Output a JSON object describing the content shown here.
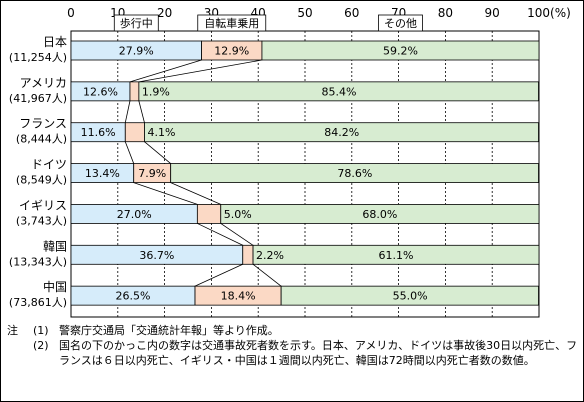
{
  "chart_data": {
    "type": "bar",
    "stacked": "100%",
    "orientation": "horizontal",
    "x_ticks": [
      "0",
      "10",
      "20",
      "30",
      "40",
      "50",
      "60",
      "70",
      "80",
      "90",
      "100(%)"
    ],
    "xlim": [
      0,
      100
    ],
    "grid": true,
    "legend_position": "top",
    "categories": [
      {
        "name": "日本",
        "count": "(11,254人)"
      },
      {
        "name": "アメリカ",
        "count": "(41,967人)"
      },
      {
        "name": "フランス",
        "count": "(8,444人)"
      },
      {
        "name": "ドイツ",
        "count": "(8,549人)"
      },
      {
        "name": "イギリス",
        "count": "(3,743人)"
      },
      {
        "name": "韓国",
        "count": "(13,343人)"
      },
      {
        "name": "中国",
        "count": "(73,861人)"
      }
    ],
    "series": [
      {
        "name": "歩行中",
        "color": "#d6ecfa",
        "values": [
          27.9,
          12.6,
          11.6,
          13.4,
          27.0,
          36.7,
          26.5
        ],
        "labels": [
          "27.9%",
          "12.6%",
          "11.6%",
          "13.4%",
          "27.0%",
          "36.7%",
          "26.5%"
        ]
      },
      {
        "name": "自転車乗用",
        "color": "#fbd9c5",
        "values": [
          12.9,
          1.9,
          4.1,
          7.9,
          5.0,
          2.2,
          18.4
        ],
        "labels": [
          "12.9%",
          "1.9%",
          "4.1%",
          "7.9%",
          "5.0%",
          "2.2%",
          "18.4%"
        ]
      },
      {
        "name": "その他",
        "color": "#d7ecd1",
        "values": [
          59.2,
          85.4,
          84.2,
          78.6,
          68.0,
          61.1,
          55.0
        ],
        "labels": [
          "59.2%",
          "85.4%",
          "84.2%",
          "78.6%",
          "68.0%",
          "61.1%",
          "55.0%"
        ]
      }
    ]
  },
  "notes": [
    {
      "mark": "注",
      "num": "(1)",
      "text": "警察庁交通局「交通統計年報」等より作成。"
    },
    {
      "mark": "",
      "num": "(2)",
      "text": "国名の下のかっこ内の数字は交通事故死者数を示す。日本、アメリカ、ドイツは事故後30日以内死亡、フランスは６日以内死亡、イギリス・中国は１週間以内死亡、韓国は72時間以内死亡者数の数値。"
    }
  ]
}
